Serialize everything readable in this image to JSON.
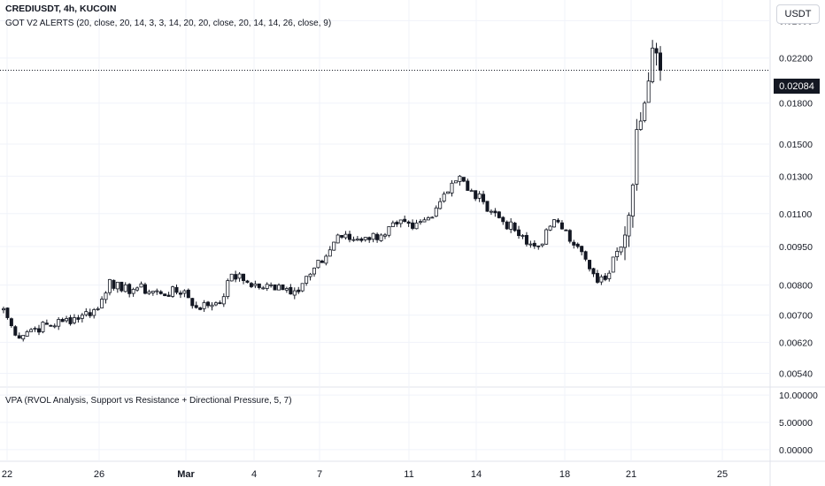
{
  "header": {
    "symbol": "CREDIUSDT, 4h, KUCOIN",
    "indicator": "GOT V2 ALERTS (20, close, 20, 14, 3, 3, 14, 20, 20, close, 20, 14, 14, 26, close, 9)",
    "currency": "USDT"
  },
  "last_price": "0.02084",
  "lower_pane": {
    "label": "VPA (RVOL Analysis, Support vs Resistance + Directional Pressure, 5, 7)"
  },
  "chart_data": [
    {
      "type": "candlestick",
      "price_axis_ticks": [
        "0.02600",
        "0.02200",
        "0.01800",
        "0.01500",
        "0.01300",
        "0.01100",
        "0.00950",
        "0.00800",
        "0.00700",
        "0.00620",
        "0.00540"
      ],
      "date_ticks": [
        "22",
        "26",
        "Mar",
        "4",
        "7",
        "11",
        "14",
        "18",
        "21",
        "25"
      ],
      "close_anchors": [
        {
          "bar": 0,
          "close": 0.0072
        },
        {
          "bar": 3,
          "close": 0.0064
        },
        {
          "bar": 8,
          "close": 0.0066
        },
        {
          "bar": 15,
          "close": 0.0068
        },
        {
          "bar": 20,
          "close": 0.007
        },
        {
          "bar": 24,
          "close": 0.0072
        },
        {
          "bar": 27,
          "close": 0.0082
        },
        {
          "bar": 30,
          "close": 0.0078
        },
        {
          "bar": 34,
          "close": 0.0079
        },
        {
          "bar": 40,
          "close": 0.0077
        },
        {
          "bar": 46,
          "close": 0.0078
        },
        {
          "bar": 48,
          "close": 0.0073
        },
        {
          "bar": 52,
          "close": 0.0073
        },
        {
          "bar": 56,
          "close": 0.0076
        },
        {
          "bar": 58,
          "close": 0.0084
        },
        {
          "bar": 62,
          "close": 0.0081
        },
        {
          "bar": 66,
          "close": 0.0079
        },
        {
          "bar": 70,
          "close": 0.008
        },
        {
          "bar": 74,
          "close": 0.0078
        },
        {
          "bar": 78,
          "close": 0.0084
        },
        {
          "bar": 82,
          "close": 0.0091
        },
        {
          "bar": 85,
          "close": 0.01
        },
        {
          "bar": 88,
          "close": 0.0098
        },
        {
          "bar": 92,
          "close": 0.0099
        },
        {
          "bar": 96,
          "close": 0.01
        },
        {
          "bar": 100,
          "close": 0.0105
        },
        {
          "bar": 104,
          "close": 0.0103
        },
        {
          "bar": 108,
          "close": 0.0108
        },
        {
          "bar": 112,
          "close": 0.012
        },
        {
          "bar": 114,
          "close": 0.0126
        },
        {
          "bar": 116,
          "close": 0.013
        },
        {
          "bar": 118,
          "close": 0.0122
        },
        {
          "bar": 122,
          "close": 0.0116
        },
        {
          "bar": 126,
          "close": 0.0108
        },
        {
          "bar": 130,
          "close": 0.0102
        },
        {
          "bar": 133,
          "close": 0.0096
        },
        {
          "bar": 136,
          "close": 0.0095
        },
        {
          "bar": 139,
          "close": 0.0104
        },
        {
          "bar": 141,
          "close": 0.0106
        },
        {
          "bar": 143,
          "close": 0.0102
        },
        {
          "bar": 146,
          "close": 0.0095
        },
        {
          "bar": 149,
          "close": 0.0086
        },
        {
          "bar": 151,
          "close": 0.0081
        },
        {
          "bar": 153,
          "close": 0.0082
        },
        {
          "bar": 156,
          "close": 0.0093
        },
        {
          "bar": 158,
          "close": 0.01
        },
        {
          "bar": 160,
          "close": 0.0125
        },
        {
          "bar": 161,
          "close": 0.016
        },
        {
          "bar": 163,
          "close": 0.018
        },
        {
          "bar": 165,
          "close": 0.023
        },
        {
          "bar": 166,
          "close": 0.0225
        },
        {
          "bar": 167,
          "close": 0.02084
        }
      ],
      "ylim": [
        0.0051,
        0.0285
      ],
      "scale": "log",
      "grid": true
    },
    {
      "type": "bar",
      "title": "VPA (RVOL Analysis, Support vs Resistance + Directional Pressure, 5, 7)",
      "axis_ticks": [
        "10.00000",
        "5.00000",
        "0.00000"
      ],
      "ylim": [
        -1,
        11
      ],
      "values": []
    }
  ]
}
